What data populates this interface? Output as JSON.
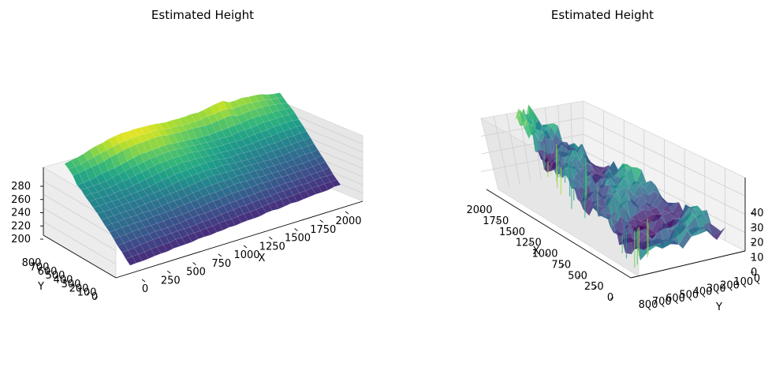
{
  "chart_data": [
    {
      "type": "surface3d",
      "title": "Estimated Height",
      "xlabel": "X",
      "ylabel": "Y",
      "zlabel": "",
      "colormap": "viridis",
      "x_ticks": [
        "0",
        "250",
        "500",
        "750",
        "1000",
        "1250",
        "1500",
        "1750",
        "2000"
      ],
      "y_ticks": [
        "800",
        "700",
        "600",
        "500",
        "400",
        "300",
        "200",
        "100",
        "0"
      ],
      "z_ticks": [
        "200",
        "220",
        "240",
        "260",
        "280"
      ],
      "xlim": [
        0,
        2100
      ],
      "ylim": [
        0,
        850
      ],
      "zlim": [
        195,
        290
      ],
      "surface_description": "smooth terrain, high ridge (~285) along far edge, low (~200) near corner",
      "colors": {
        "low": "#440154",
        "mid": "#21918c",
        "high": "#fde725"
      }
    },
    {
      "type": "surface3d",
      "title": "Estimated Height",
      "xlabel": "X",
      "ylabel": "Y",
      "zlabel": "",
      "colormap": "viridis",
      "x_ticks": [
        "2000",
        "1750",
        "1500",
        "1250",
        "1000",
        "750",
        "500",
        "250",
        "0"
      ],
      "y_ticks": [
        "800",
        "700",
        "600",
        "500",
        "400",
        "300",
        "200",
        "100",
        "0"
      ],
      "z_ticks": [
        "0",
        "10",
        "20",
        "30",
        "40"
      ],
      "xlim": [
        0,
        2100
      ],
      "ylim": [
        0,
        850
      ],
      "zlim": [
        0,
        45
      ],
      "surface_description": "noisy spiky residual surface with vertical streaks",
      "colors": {
        "low": "#440154",
        "mid": "#21918c",
        "high": "#fde725"
      }
    }
  ]
}
